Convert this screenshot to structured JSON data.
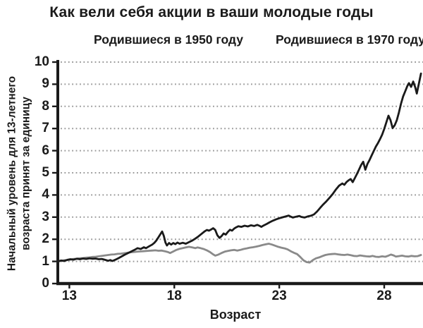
{
  "title": "Как вели себя акции в ваши молодые годы",
  "legend": {
    "born_1950": "Родившиеся в 1950 году",
    "born_1970": "Родившиеся в 1970 году"
  },
  "axes": {
    "y_label_line1": "Начальный уровень для 13-летнего",
    "y_label_line2": "возраста принят за единицу",
    "x_label": "Возраст"
  },
  "colors": {
    "line_1950": "#8a8a8a",
    "line_1970": "#1a1a1a",
    "grid": "#999999",
    "axis": "#1a1a1a",
    "background": "#ffffff"
  },
  "chart_data": {
    "type": "line",
    "title": "Как вели себя акции в ваши молодые годы",
    "xlabel": "Возраст",
    "ylabel": "Начальный уровень для 13-летнего возраста принят за единицу",
    "xlim": [
      12.45,
      29.78
    ],
    "ylim": [
      0,
      10
    ],
    "x_ticks": [
      13,
      18,
      23,
      28
    ],
    "y_ticks": [
      0,
      1,
      2,
      3,
      4,
      5,
      6,
      7,
      8,
      9,
      10
    ],
    "grid": "horizontal-dotted",
    "legend_position": "top",
    "series": [
      {
        "id": "line-born-1950",
        "name": "Родившиеся в 1950 году",
        "color": "#8a8a8a",
        "points": [
          [
            12.45,
            1.0
          ],
          [
            12.6,
            1.02
          ],
          [
            12.75,
            1.05
          ],
          [
            12.9,
            1.06
          ],
          [
            13.05,
            1.08
          ],
          [
            13.2,
            1.11
          ],
          [
            13.35,
            1.12
          ],
          [
            13.5,
            1.14
          ],
          [
            13.65,
            1.15
          ],
          [
            13.8,
            1.17
          ],
          [
            13.95,
            1.18
          ],
          [
            14.1,
            1.2
          ],
          [
            14.25,
            1.21
          ],
          [
            14.4,
            1.23
          ],
          [
            14.55,
            1.25
          ],
          [
            14.7,
            1.27
          ],
          [
            14.85,
            1.29
          ],
          [
            15.0,
            1.31
          ],
          [
            15.15,
            1.32
          ],
          [
            15.3,
            1.34
          ],
          [
            15.45,
            1.35
          ],
          [
            15.6,
            1.37
          ],
          [
            15.75,
            1.39
          ],
          [
            15.9,
            1.41
          ],
          [
            16.05,
            1.42
          ],
          [
            16.2,
            1.44
          ],
          [
            16.35,
            1.45
          ],
          [
            16.5,
            1.46
          ],
          [
            16.65,
            1.47
          ],
          [
            16.8,
            1.48
          ],
          [
            16.95,
            1.49
          ],
          [
            17.1,
            1.5
          ],
          [
            17.25,
            1.48
          ],
          [
            17.4,
            1.49
          ],
          [
            17.55,
            1.46
          ],
          [
            17.7,
            1.42
          ],
          [
            17.8,
            1.38
          ],
          [
            17.95,
            1.45
          ],
          [
            18.1,
            1.52
          ],
          [
            18.25,
            1.57
          ],
          [
            18.4,
            1.6
          ],
          [
            18.55,
            1.63
          ],
          [
            18.7,
            1.66
          ],
          [
            18.85,
            1.63
          ],
          [
            19.0,
            1.6
          ],
          [
            19.1,
            1.63
          ],
          [
            19.25,
            1.6
          ],
          [
            19.4,
            1.56
          ],
          [
            19.55,
            1.5
          ],
          [
            19.7,
            1.42
          ],
          [
            19.85,
            1.32
          ],
          [
            19.95,
            1.26
          ],
          [
            20.1,
            1.31
          ],
          [
            20.25,
            1.38
          ],
          [
            20.4,
            1.44
          ],
          [
            20.55,
            1.47
          ],
          [
            20.7,
            1.5
          ],
          [
            20.85,
            1.52
          ],
          [
            21.0,
            1.49
          ],
          [
            21.15,
            1.52
          ],
          [
            21.3,
            1.56
          ],
          [
            21.45,
            1.59
          ],
          [
            21.6,
            1.62
          ],
          [
            21.75,
            1.64
          ],
          [
            21.9,
            1.67
          ],
          [
            22.05,
            1.7
          ],
          [
            22.2,
            1.74
          ],
          [
            22.35,
            1.77
          ],
          [
            22.5,
            1.8
          ],
          [
            22.65,
            1.76
          ],
          [
            22.8,
            1.71
          ],
          [
            22.95,
            1.66
          ],
          [
            23.1,
            1.62
          ],
          [
            23.25,
            1.59
          ],
          [
            23.4,
            1.54
          ],
          [
            23.55,
            1.46
          ],
          [
            23.7,
            1.39
          ],
          [
            23.85,
            1.33
          ],
          [
            24.0,
            1.2
          ],
          [
            24.15,
            1.05
          ],
          [
            24.3,
            0.97
          ],
          [
            24.45,
            0.95
          ],
          [
            24.6,
            1.06
          ],
          [
            24.75,
            1.14
          ],
          [
            24.9,
            1.18
          ],
          [
            25.05,
            1.24
          ],
          [
            25.2,
            1.29
          ],
          [
            25.35,
            1.32
          ],
          [
            25.5,
            1.33
          ],
          [
            25.65,
            1.34
          ],
          [
            25.8,
            1.32
          ],
          [
            25.95,
            1.3
          ],
          [
            26.1,
            1.29
          ],
          [
            26.25,
            1.31
          ],
          [
            26.4,
            1.28
          ],
          [
            26.55,
            1.25
          ],
          [
            26.7,
            1.24
          ],
          [
            26.85,
            1.27
          ],
          [
            27.0,
            1.25
          ],
          [
            27.15,
            1.23
          ],
          [
            27.3,
            1.22
          ],
          [
            27.45,
            1.25
          ],
          [
            27.6,
            1.21
          ],
          [
            27.75,
            1.2
          ],
          [
            27.9,
            1.23
          ],
          [
            28.05,
            1.21
          ],
          [
            28.2,
            1.26
          ],
          [
            28.32,
            1.31
          ],
          [
            28.45,
            1.27
          ],
          [
            28.55,
            1.22
          ],
          [
            28.7,
            1.24
          ],
          [
            28.85,
            1.26
          ],
          [
            29.0,
            1.23
          ],
          [
            29.15,
            1.22
          ],
          [
            29.3,
            1.25
          ],
          [
            29.45,
            1.23
          ],
          [
            29.6,
            1.24
          ],
          [
            29.75,
            1.29
          ]
        ]
      },
      {
        "id": "line-born-1970",
        "name": "Родившиеся в 1970 году",
        "color": "#1a1a1a",
        "points": [
          [
            12.45,
            1.0
          ],
          [
            12.6,
            1.04
          ],
          [
            12.75,
            1.02
          ],
          [
            12.9,
            1.07
          ],
          [
            13.05,
            1.1
          ],
          [
            13.2,
            1.08
          ],
          [
            13.35,
            1.12
          ],
          [
            13.5,
            1.1
          ],
          [
            13.65,
            1.13
          ],
          [
            13.8,
            1.11
          ],
          [
            13.95,
            1.14
          ],
          [
            14.1,
            1.12
          ],
          [
            14.25,
            1.13
          ],
          [
            14.4,
            1.1
          ],
          [
            14.55,
            1.11
          ],
          [
            14.7,
            1.07
          ],
          [
            14.85,
            1.03
          ],
          [
            14.95,
            1.06
          ],
          [
            15.05,
            1.02
          ],
          [
            15.2,
            1.08
          ],
          [
            15.35,
            1.15
          ],
          [
            15.5,
            1.23
          ],
          [
            15.65,
            1.31
          ],
          [
            15.8,
            1.38
          ],
          [
            15.95,
            1.45
          ],
          [
            16.1,
            1.52
          ],
          [
            16.25,
            1.6
          ],
          [
            16.4,
            1.56
          ],
          [
            16.55,
            1.64
          ],
          [
            16.65,
            1.6
          ],
          [
            16.8,
            1.68
          ],
          [
            16.95,
            1.76
          ],
          [
            17.05,
            1.84
          ],
          [
            17.15,
            1.95
          ],
          [
            17.25,
            2.1
          ],
          [
            17.35,
            2.25
          ],
          [
            17.42,
            2.35
          ],
          [
            17.5,
            2.15
          ],
          [
            17.58,
            1.85
          ],
          [
            17.65,
            1.72
          ],
          [
            17.75,
            1.83
          ],
          [
            17.85,
            1.76
          ],
          [
            17.95,
            1.83
          ],
          [
            18.05,
            1.78
          ],
          [
            18.15,
            1.85
          ],
          [
            18.25,
            1.8
          ],
          [
            18.4,
            1.84
          ],
          [
            18.55,
            1.8
          ],
          [
            18.7,
            1.87
          ],
          [
            18.85,
            1.94
          ],
          [
            19.0,
            2.03
          ],
          [
            19.15,
            2.13
          ],
          [
            19.3,
            2.25
          ],
          [
            19.45,
            2.36
          ],
          [
            19.55,
            2.42
          ],
          [
            19.65,
            2.39
          ],
          [
            19.75,
            2.44
          ],
          [
            19.85,
            2.5
          ],
          [
            19.95,
            2.42
          ],
          [
            20.05,
            2.18
          ],
          [
            20.15,
            2.06
          ],
          [
            20.25,
            2.14
          ],
          [
            20.35,
            2.26
          ],
          [
            20.45,
            2.21
          ],
          [
            20.55,
            2.33
          ],
          [
            20.65,
            2.43
          ],
          [
            20.75,
            2.39
          ],
          [
            20.85,
            2.48
          ],
          [
            20.95,
            2.54
          ],
          [
            21.05,
            2.59
          ],
          [
            21.2,
            2.56
          ],
          [
            21.35,
            2.61
          ],
          [
            21.5,
            2.58
          ],
          [
            21.65,
            2.63
          ],
          [
            21.8,
            2.6
          ],
          [
            21.95,
            2.65
          ],
          [
            22.05,
            2.61
          ],
          [
            22.15,
            2.56
          ],
          [
            22.25,
            2.62
          ],
          [
            22.4,
            2.69
          ],
          [
            22.55,
            2.77
          ],
          [
            22.7,
            2.84
          ],
          [
            22.85,
            2.9
          ],
          [
            23.0,
            2.95
          ],
          [
            23.15,
            2.99
          ],
          [
            23.3,
            3.03
          ],
          [
            23.45,
            3.07
          ],
          [
            23.55,
            3.02
          ],
          [
            23.65,
            2.98
          ],
          [
            23.8,
            3.02
          ],
          [
            23.95,
            3.05
          ],
          [
            24.05,
            3.01
          ],
          [
            24.2,
            2.98
          ],
          [
            24.35,
            3.03
          ],
          [
            24.5,
            3.06
          ],
          [
            24.65,
            3.12
          ],
          [
            24.8,
            3.25
          ],
          [
            24.95,
            3.42
          ],
          [
            25.1,
            3.58
          ],
          [
            25.25,
            3.72
          ],
          [
            25.4,
            3.88
          ],
          [
            25.55,
            4.05
          ],
          [
            25.7,
            4.25
          ],
          [
            25.85,
            4.42
          ],
          [
            26.0,
            4.52
          ],
          [
            26.1,
            4.46
          ],
          [
            26.2,
            4.58
          ],
          [
            26.3,
            4.66
          ],
          [
            26.4,
            4.72
          ],
          [
            26.5,
            4.58
          ],
          [
            26.6,
            4.76
          ],
          [
            26.7,
            4.95
          ],
          [
            26.8,
            5.15
          ],
          [
            26.9,
            5.35
          ],
          [
            27.0,
            5.5
          ],
          [
            27.1,
            5.14
          ],
          [
            27.2,
            5.4
          ],
          [
            27.3,
            5.58
          ],
          [
            27.4,
            5.78
          ],
          [
            27.5,
            5.98
          ],
          [
            27.6,
            6.18
          ],
          [
            27.7,
            6.34
          ],
          [
            27.8,
            6.52
          ],
          [
            27.9,
            6.72
          ],
          [
            28.0,
            6.98
          ],
          [
            28.1,
            7.28
          ],
          [
            28.2,
            7.58
          ],
          [
            28.3,
            7.38
          ],
          [
            28.4,
            7.02
          ],
          [
            28.5,
            7.15
          ],
          [
            28.6,
            7.38
          ],
          [
            28.7,
            7.72
          ],
          [
            28.8,
            8.12
          ],
          [
            28.9,
            8.45
          ],
          [
            29.0,
            8.68
          ],
          [
            29.1,
            8.92
          ],
          [
            29.18,
            9.05
          ],
          [
            29.28,
            8.88
          ],
          [
            29.38,
            9.12
          ],
          [
            29.48,
            8.85
          ],
          [
            29.55,
            8.58
          ],
          [
            29.65,
            9.02
          ],
          [
            29.75,
            9.48
          ]
        ]
      }
    ]
  }
}
